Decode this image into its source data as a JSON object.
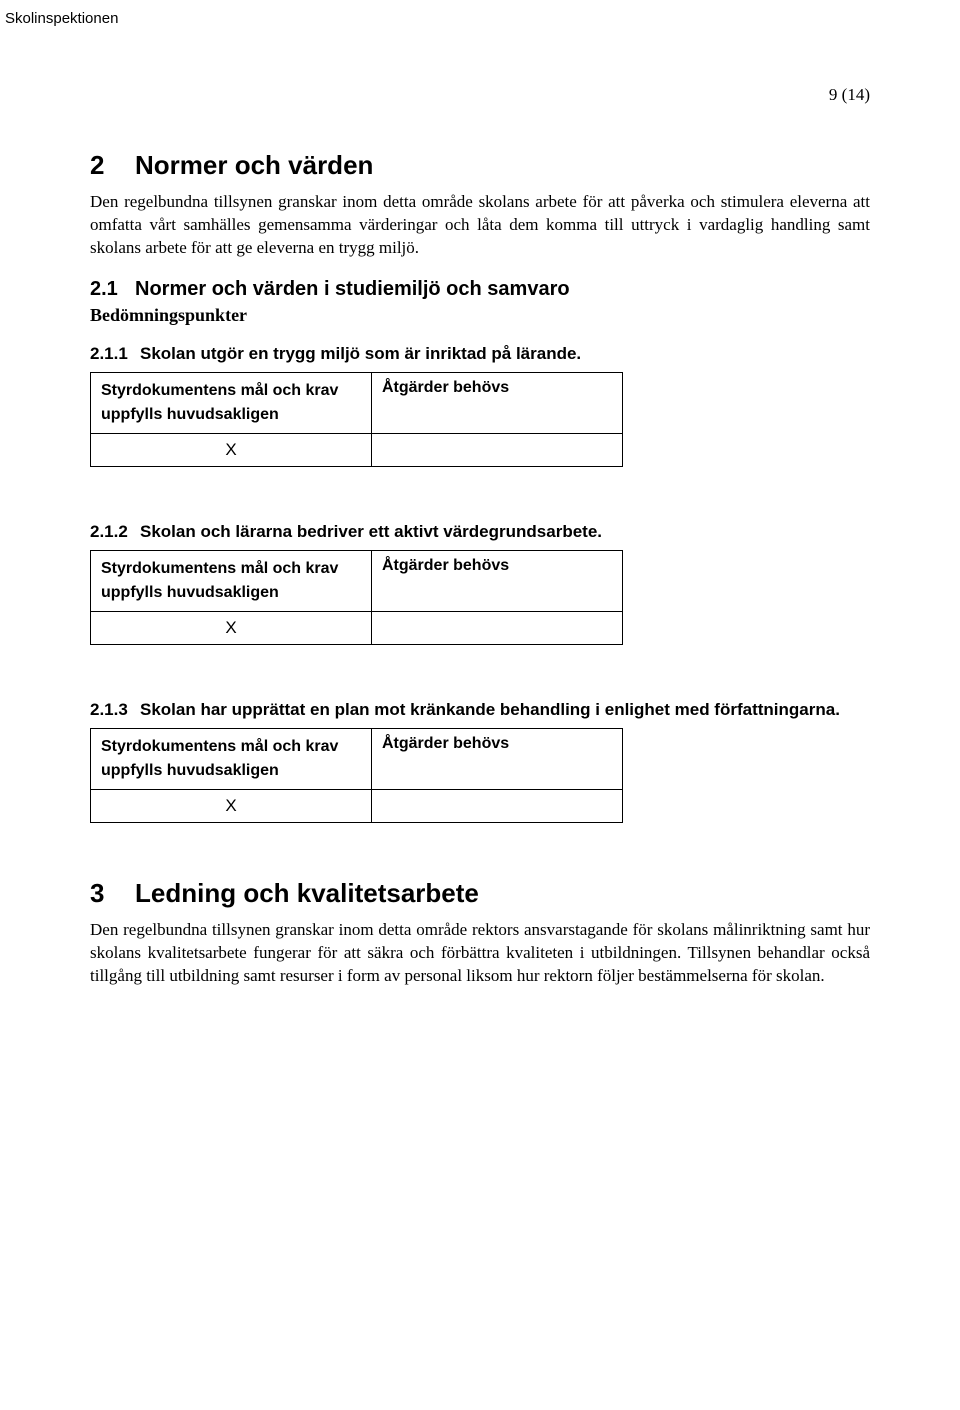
{
  "header": {
    "org": "Skolinspektionen",
    "page_number": "9 (14)"
  },
  "section2": {
    "num": "2",
    "title": "Normer och värden",
    "body": "Den regelbundna tillsynen granskar inom detta område skolans arbete för att påverka och stimulera eleverna att omfatta vårt samhälles gemensamma värderingar och låta dem komma till uttryck i vardaglig handling samt skolans arbete för att ge eleverna en trygg miljö.",
    "sub1": {
      "num": "2.1",
      "title": "Normer och värden i studiemiljö och samvaro",
      "bedom": "Bedömningspunkter"
    },
    "items": [
      {
        "num": "2.1.1",
        "title": "Skolan utgör en trygg miljö som är inriktad på lärande.",
        "table": {
          "left_header": "Styrdokumentens mål och krav uppfylls huvudsakligen",
          "right_header": "Åtgärder behövs",
          "left_value": "X",
          "right_value": ""
        }
      },
      {
        "num": "2.1.2",
        "title": "Skolan och lärarna bedriver ett aktivt värdegrundsarbete.",
        "table": {
          "left_header": "Styrdokumentens mål och krav uppfylls huvudsakligen",
          "right_header": "Åtgärder behövs",
          "left_value": "X",
          "right_value": ""
        }
      },
      {
        "num": "2.1.3",
        "title": "Skolan har upprättat en plan mot kränkande behandling i enlighet med författningarna.",
        "table": {
          "left_header": "Styrdokumentens mål och krav uppfylls huvudsakligen",
          "right_header": "Åtgärder behövs",
          "left_value": "X",
          "right_value": ""
        }
      }
    ]
  },
  "section3": {
    "num": "3",
    "title": "Ledning och kvalitetsarbete",
    "body": "Den regelbundna tillsynen granskar inom detta område rektors ansvarstagande för skolans målinriktning samt hur skolans kvalitetsarbete fungerar för att säkra och förbättra kvaliteten i utbildningen. Tillsynen behandlar också tillgång till utbildning samt resurser i form av personal liksom hur rektorn följer bestämmelserna för skolan."
  }
}
